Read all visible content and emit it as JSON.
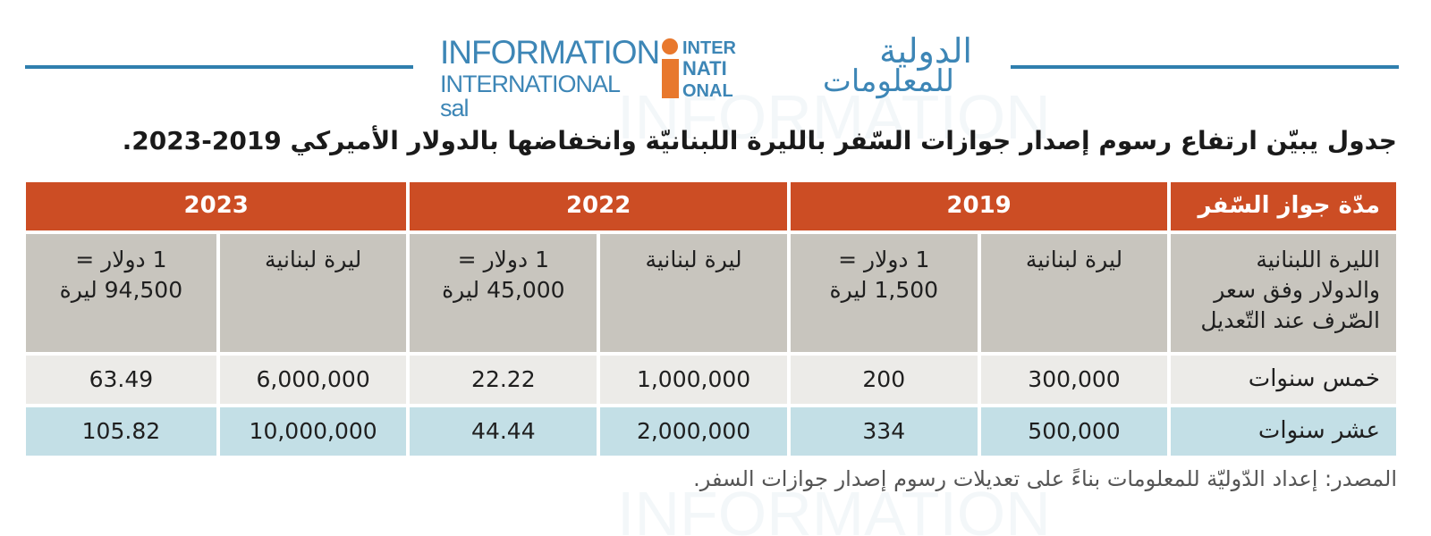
{
  "logo": {
    "en_line1": "INFORMATION",
    "en_line2": "INTERNATIONAL sal",
    "mark_i": "i",
    "mark_lines": [
      "INTER",
      "NATI",
      "ONAL"
    ],
    "ar_line1": "الدولية",
    "ar_line2": "للمعلومات"
  },
  "title": "جدول يبيّن ارتفاع رسوم إصدار جوازات السّفر بالليرة اللبنانيّة وانخفاضها بالدولار الأميركي 2019-2023.",
  "table": {
    "group_headers": {
      "first": "مدّة جواز السّفر",
      "y2019": "2019",
      "y2022": "2022",
      "y2023": "2023"
    },
    "sub_headers": {
      "first": "الليرة اللبنانية والدولار وفق سعر الصّرف عند التّعديل",
      "ll_2019": "ليرة لبنانية",
      "usd_2019": "1 دولار = 1,500 ليرة",
      "ll_2022": "ليرة لبنانية",
      "usd_2022": "1 دولار = 45,000 ليرة",
      "ll_2023": "ليرة لبنانية",
      "usd_2023": "1 دولار = 94,500 ليرة"
    },
    "rows": [
      {
        "label": "خمس سنوات",
        "ll_2019": "300,000",
        "usd_2019": "200",
        "ll_2022": "1,000,000",
        "usd_2022": "22.22",
        "ll_2023": "6,000,000",
        "usd_2023": "63.49"
      },
      {
        "label": "عشر سنوات",
        "ll_2019": "500,000",
        "usd_2019": "334",
        "ll_2022": "2,000,000",
        "usd_2022": "44.44",
        "ll_2023": "10,000,000",
        "usd_2023": "105.82"
      }
    ],
    "colors": {
      "header": "#cc4d24",
      "subheader": "#c8c5be",
      "row1": "#ecebe8",
      "row2": "#c3dfe6",
      "rule": "#2f7fae"
    }
  },
  "source": "المصدر: إعداد الدّوليّة للمعلومات بناءً على تعديلات رسوم إصدار جوازات السفر."
}
